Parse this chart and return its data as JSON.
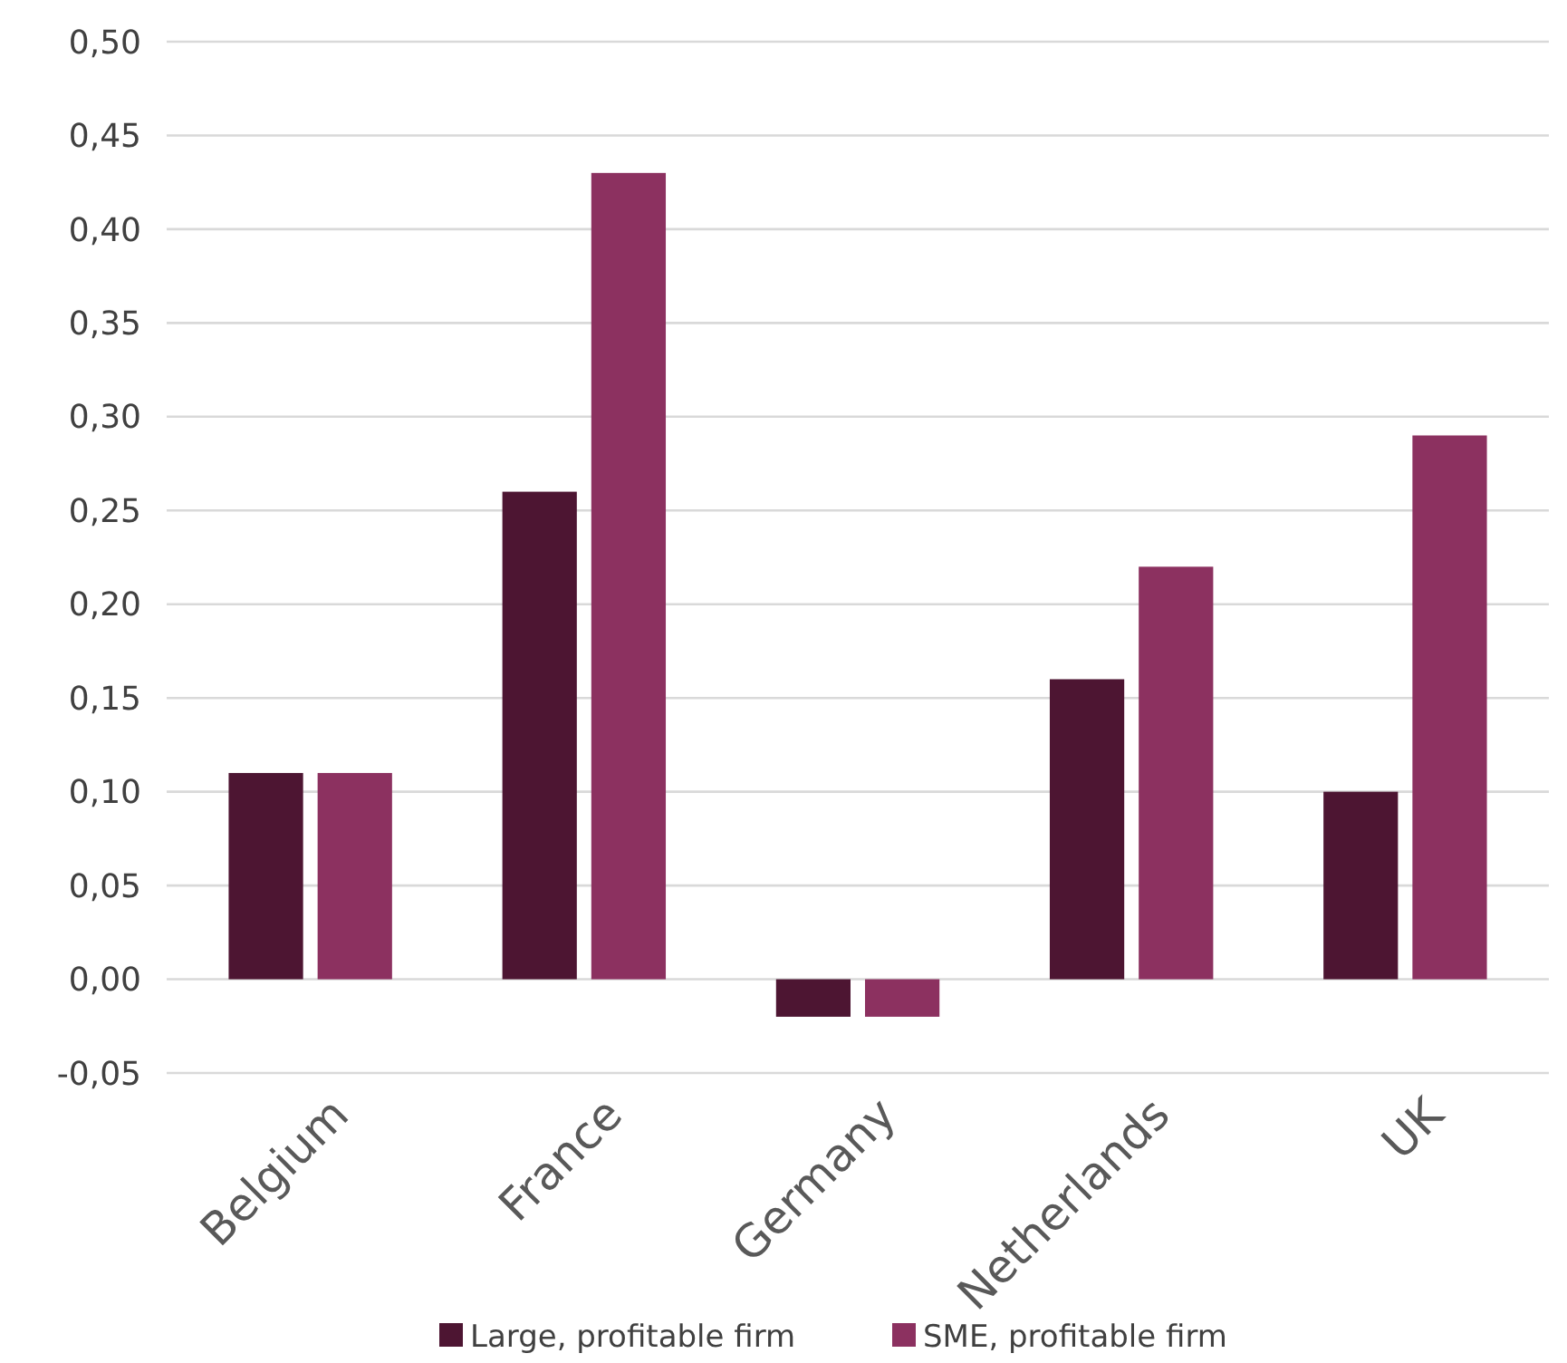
{
  "chart_data": {
    "type": "bar",
    "categories": [
      "Belgium",
      "France",
      "Germany",
      "Netherlands",
      "UK"
    ],
    "series": [
      {
        "name": "Large, profitable firm",
        "color": "#4d1532",
        "values": [
          0.11,
          0.26,
          -0.02,
          0.16,
          0.1
        ]
      },
      {
        "name": "SME, profitable firm",
        "color": "#8c3160",
        "values": [
          0.11,
          0.43,
          -0.02,
          0.22,
          0.29
        ]
      }
    ],
    "ylim": [
      -0.05,
      0.5
    ],
    "yticks": [
      {
        "value": -0.05,
        "label": "-0,05"
      },
      {
        "value": 0,
        "label": "0,00"
      },
      {
        "value": 0.05,
        "label": "0,05"
      },
      {
        "value": 0.1,
        "label": "0,10"
      },
      {
        "value": 0.15,
        "label": "0,15"
      },
      {
        "value": 0.2,
        "label": "0,20"
      },
      {
        "value": 0.25,
        "label": "0,25"
      },
      {
        "value": 0.3,
        "label": "0,30"
      },
      {
        "value": 0.35,
        "label": "0,35"
      },
      {
        "value": 0.4,
        "label": "0,40"
      },
      {
        "value": 0.45,
        "label": "0,45"
      },
      {
        "value": 0.5,
        "label": "0,50"
      }
    ],
    "grid": "y",
    "legend": "bottom"
  }
}
